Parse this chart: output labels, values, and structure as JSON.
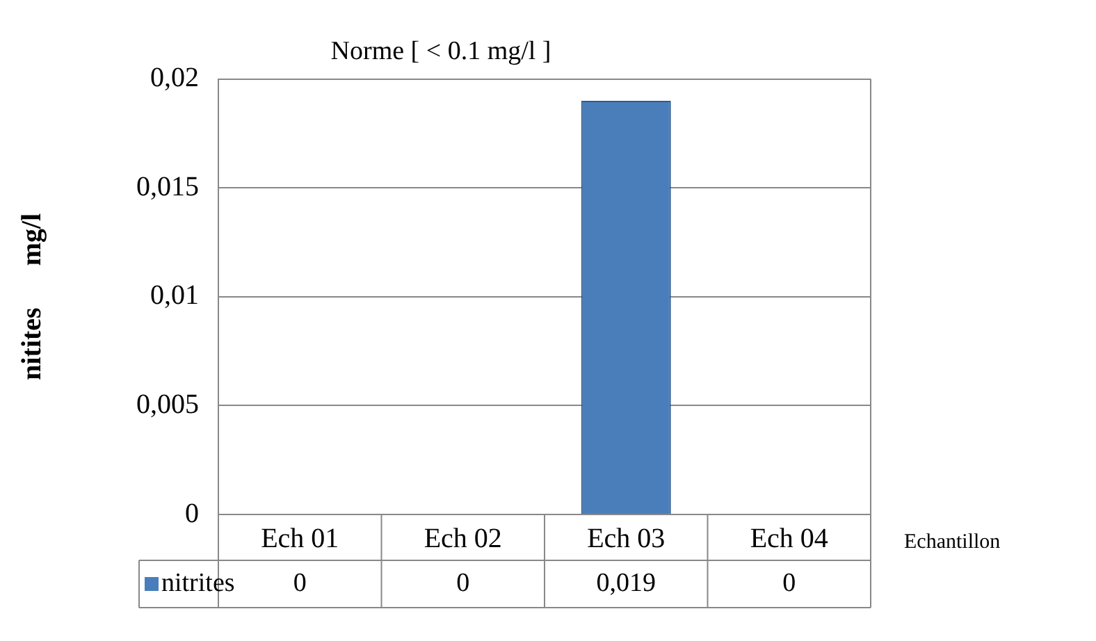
{
  "chart_data": {
    "type": "bar",
    "title": "Norme [ < 0.1 mg/l ]",
    "ylabel": "nitites      mg/l",
    "xlabel": "Echantillon",
    "categories": [
      "Ech 01",
      "Ech 02",
      "Ech 03",
      "Ech 04"
    ],
    "series": [
      {
        "name": "nitrites",
        "color": "#4a7ebb",
        "values": [
          0,
          0,
          0.019,
          0
        ],
        "value_labels": [
          "0",
          "0",
          "0,019",
          "0"
        ]
      }
    ],
    "ylim": [
      0,
      0.02
    ],
    "yticks": [
      {
        "value": 0,
        "label": "0"
      },
      {
        "value": 0.005,
        "label": "0,005"
      },
      {
        "value": 0.01,
        "label": "0,01"
      },
      {
        "value": 0.015,
        "label": "0,015"
      },
      {
        "value": 0.02,
        "label": "0,02"
      }
    ],
    "grid": "y",
    "legend": "bottom"
  }
}
